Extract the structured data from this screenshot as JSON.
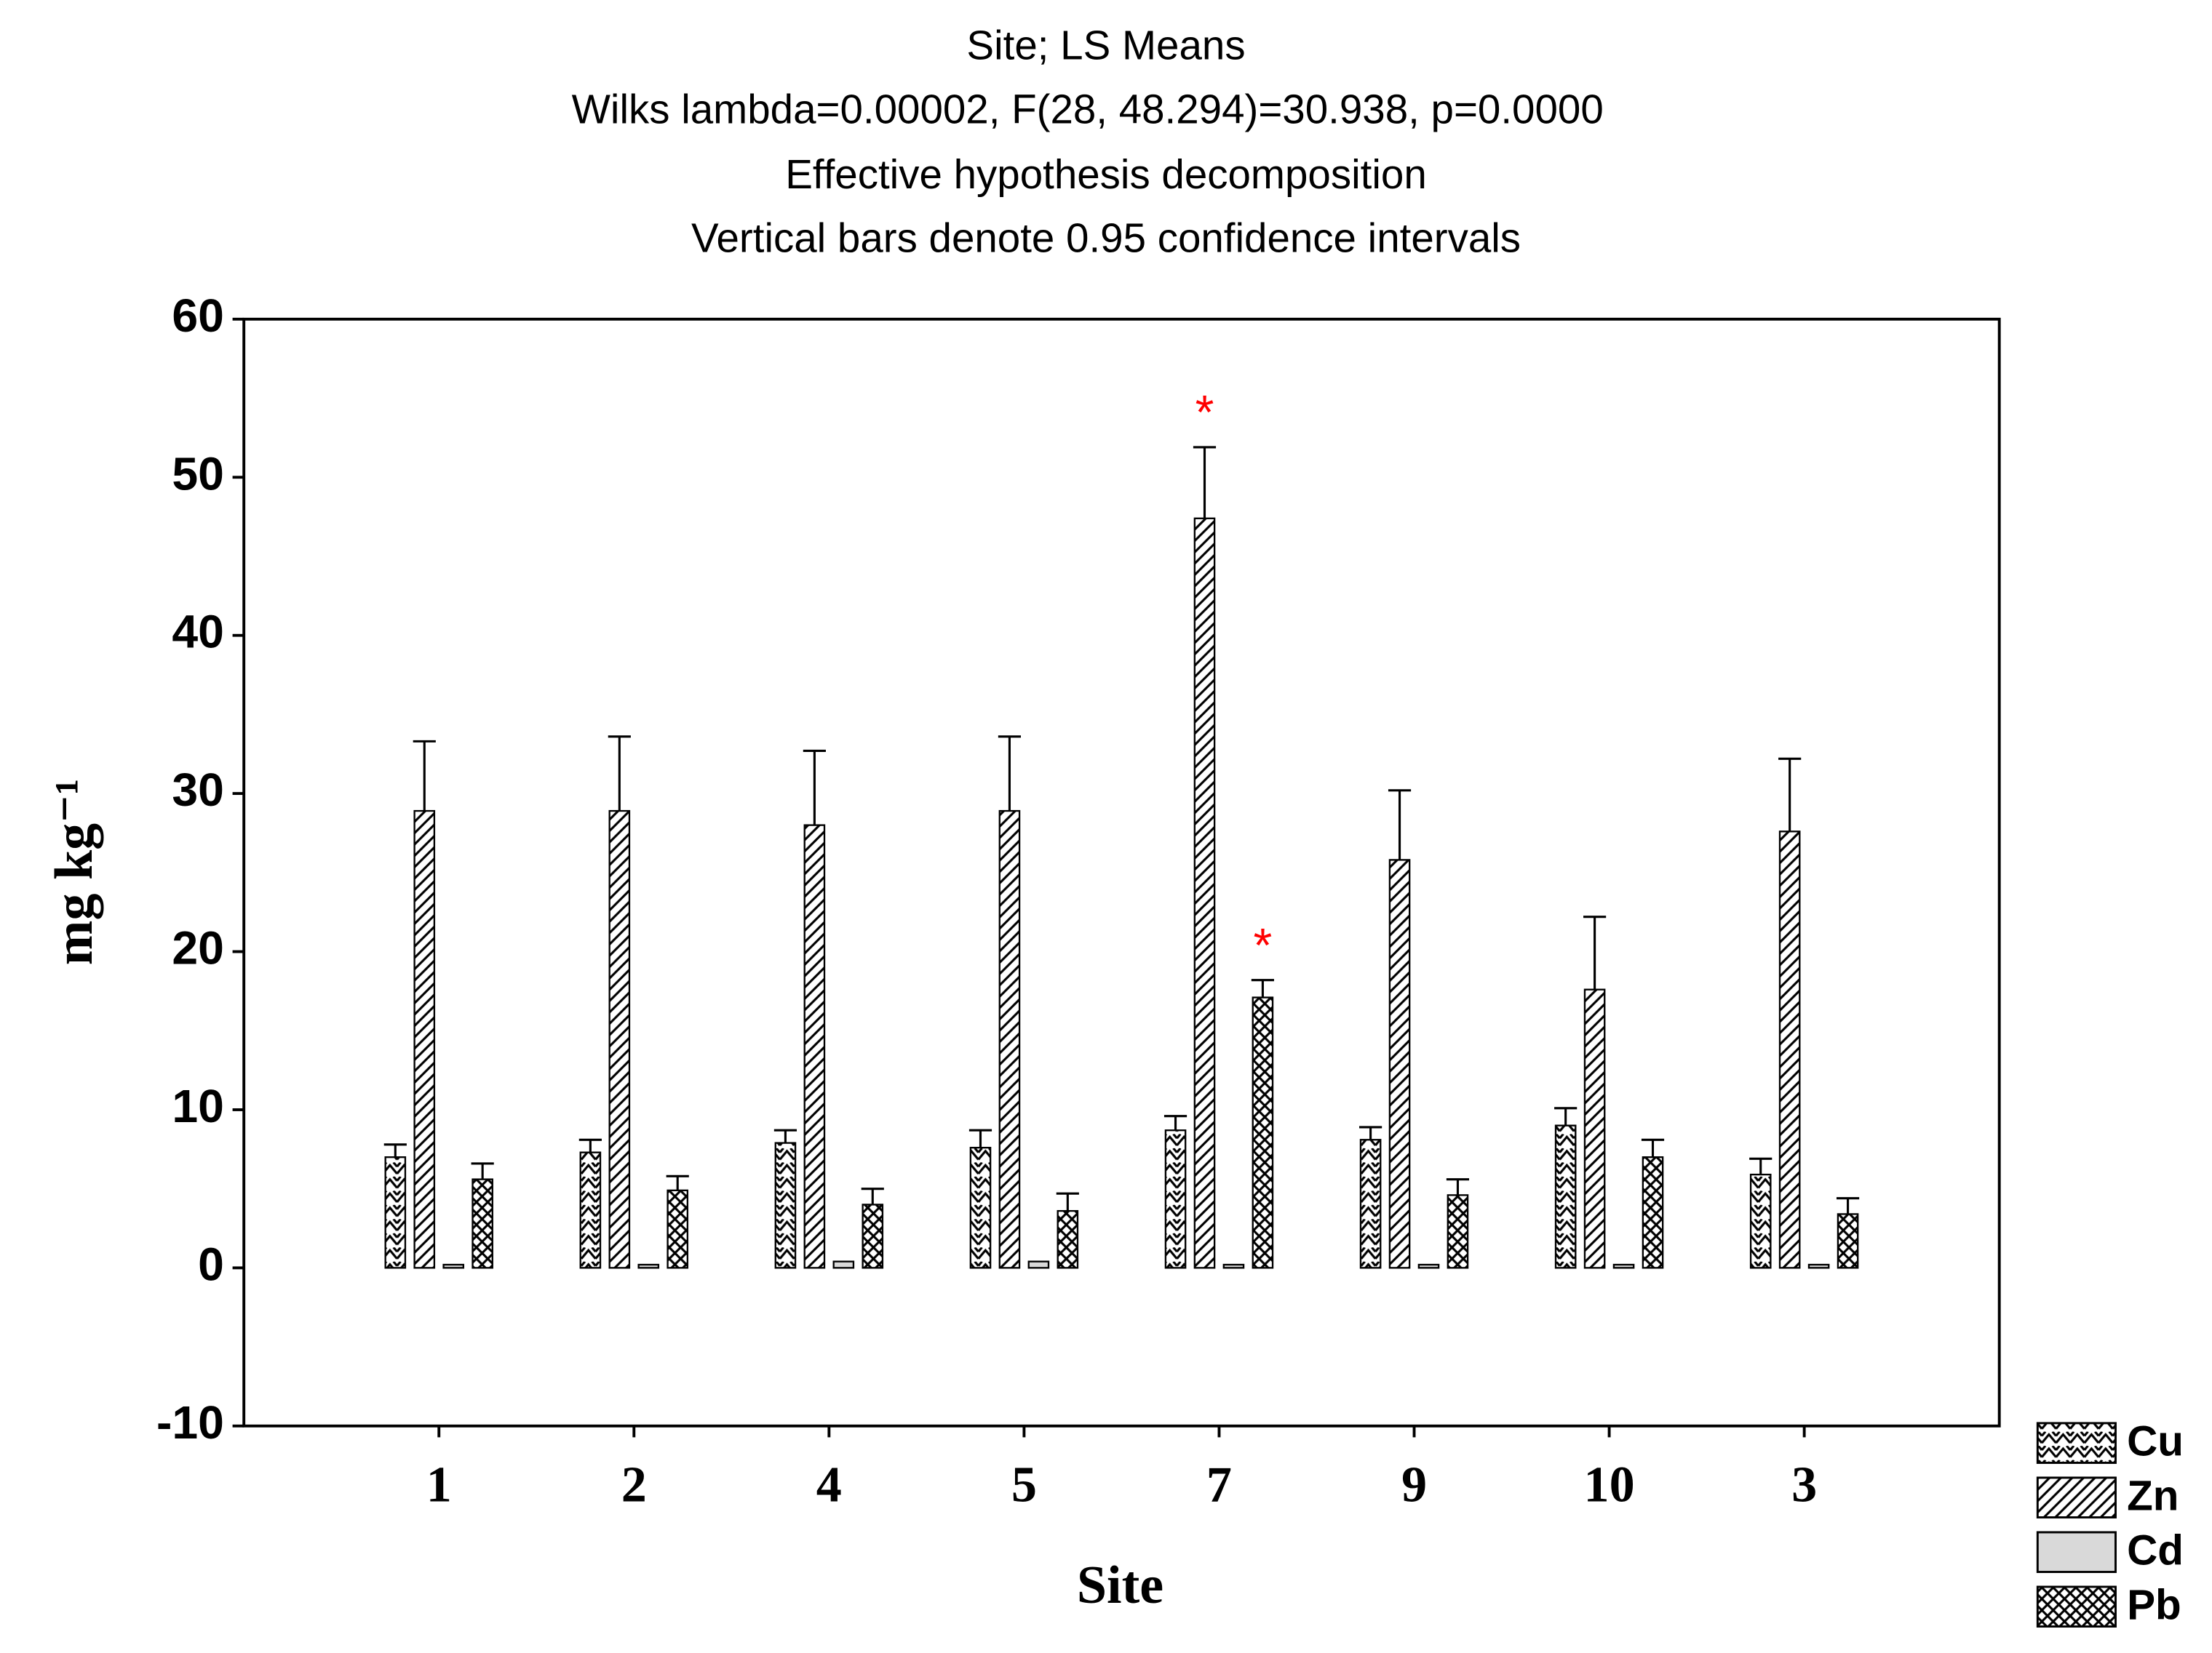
{
  "chart_data": {
    "type": "bar",
    "title": "Site; LS Means",
    "subtitle": [
      "Wilks lambda=0.00002, F(28, 48.294)=30.938, p=0.0000",
      "Effective hypothesis decomposition",
      "Vertical bars denote 0.95 confidence intervals"
    ],
    "xlabel": "Site",
    "ylabel": "mg kg⁻¹",
    "categories": [
      "1",
      "2",
      "4",
      "5",
      "7",
      "9",
      "10",
      "3"
    ],
    "series": [
      {
        "name": "Cu",
        "color": "#000000",
        "pattern": "zigzag",
        "values": [
          7.0,
          7.3,
          7.9,
          7.6,
          8.7,
          8.1,
          9.0,
          5.9
        ],
        "errors": [
          0.8,
          0.8,
          0.8,
          1.1,
          0.9,
          0.8,
          1.1,
          1.0
        ]
      },
      {
        "name": "Zn",
        "color": "#000000",
        "pattern": "diagonal",
        "values": [
          28.9,
          28.9,
          28.0,
          28.9,
          47.4,
          25.8,
          17.6,
          27.6
        ],
        "errors": [
          4.4,
          4.7,
          4.7,
          4.7,
          4.5,
          4.4,
          4.6,
          4.6
        ],
        "annotations": [
          null,
          null,
          null,
          null,
          "*",
          null,
          null,
          null
        ]
      },
      {
        "name": "Cd",
        "color": "#d9d9d9",
        "pattern": "solid",
        "values": [
          0.2,
          0.2,
          0.4,
          0.4,
          0.2,
          0.2,
          0.2,
          0.2
        ]
      },
      {
        "name": "Pb",
        "color": "#000000",
        "pattern": "cross",
        "values": [
          5.6,
          4.9,
          4.0,
          3.6,
          17.1,
          4.6,
          7.0,
          3.4
        ],
        "errors": [
          1.0,
          0.9,
          1.0,
          1.1,
          1.1,
          1.0,
          1.1,
          1.0
        ],
        "annotations": [
          null,
          null,
          null,
          null,
          "*",
          null,
          null,
          null
        ]
      }
    ],
    "annotation_color": "#ff0000",
    "ylim": [
      -10,
      60
    ],
    "yticks": [
      -10,
      0,
      10,
      20,
      30,
      40,
      50,
      60
    ],
    "grid": false,
    "legend": "bottom-right"
  }
}
